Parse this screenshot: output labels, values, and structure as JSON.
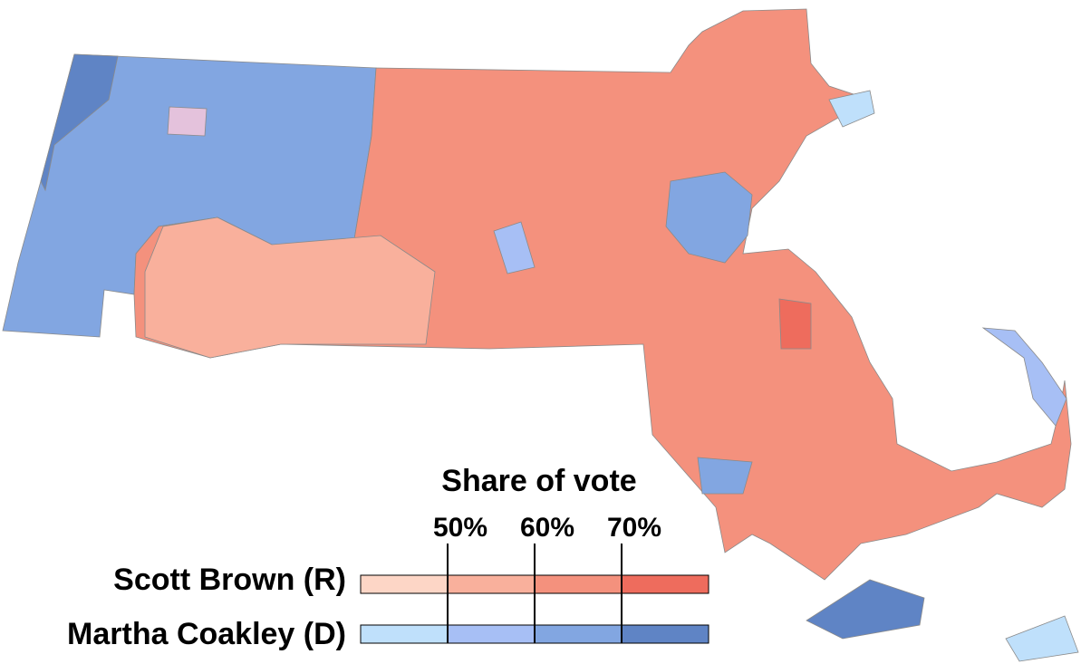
{
  "legend": {
    "title": "Share of vote",
    "range": [
      40,
      80
    ],
    "ticks": [
      {
        "value": 50,
        "label": "50%"
      },
      {
        "value": 60,
        "label": "60%"
      },
      {
        "value": 70,
        "label": "70%"
      }
    ],
    "rows": [
      {
        "name": "Scott Brown (R)",
        "colors": [
          "#fdd6c6",
          "#f9b09c",
          "#f4917d",
          "#ee6c5d"
        ]
      },
      {
        "name": "Martha Coakley (D)",
        "colors": [
          "#bfe0fb",
          "#a7bff5",
          "#82a6e1",
          "#5f84c5"
        ]
      }
    ]
  }
}
